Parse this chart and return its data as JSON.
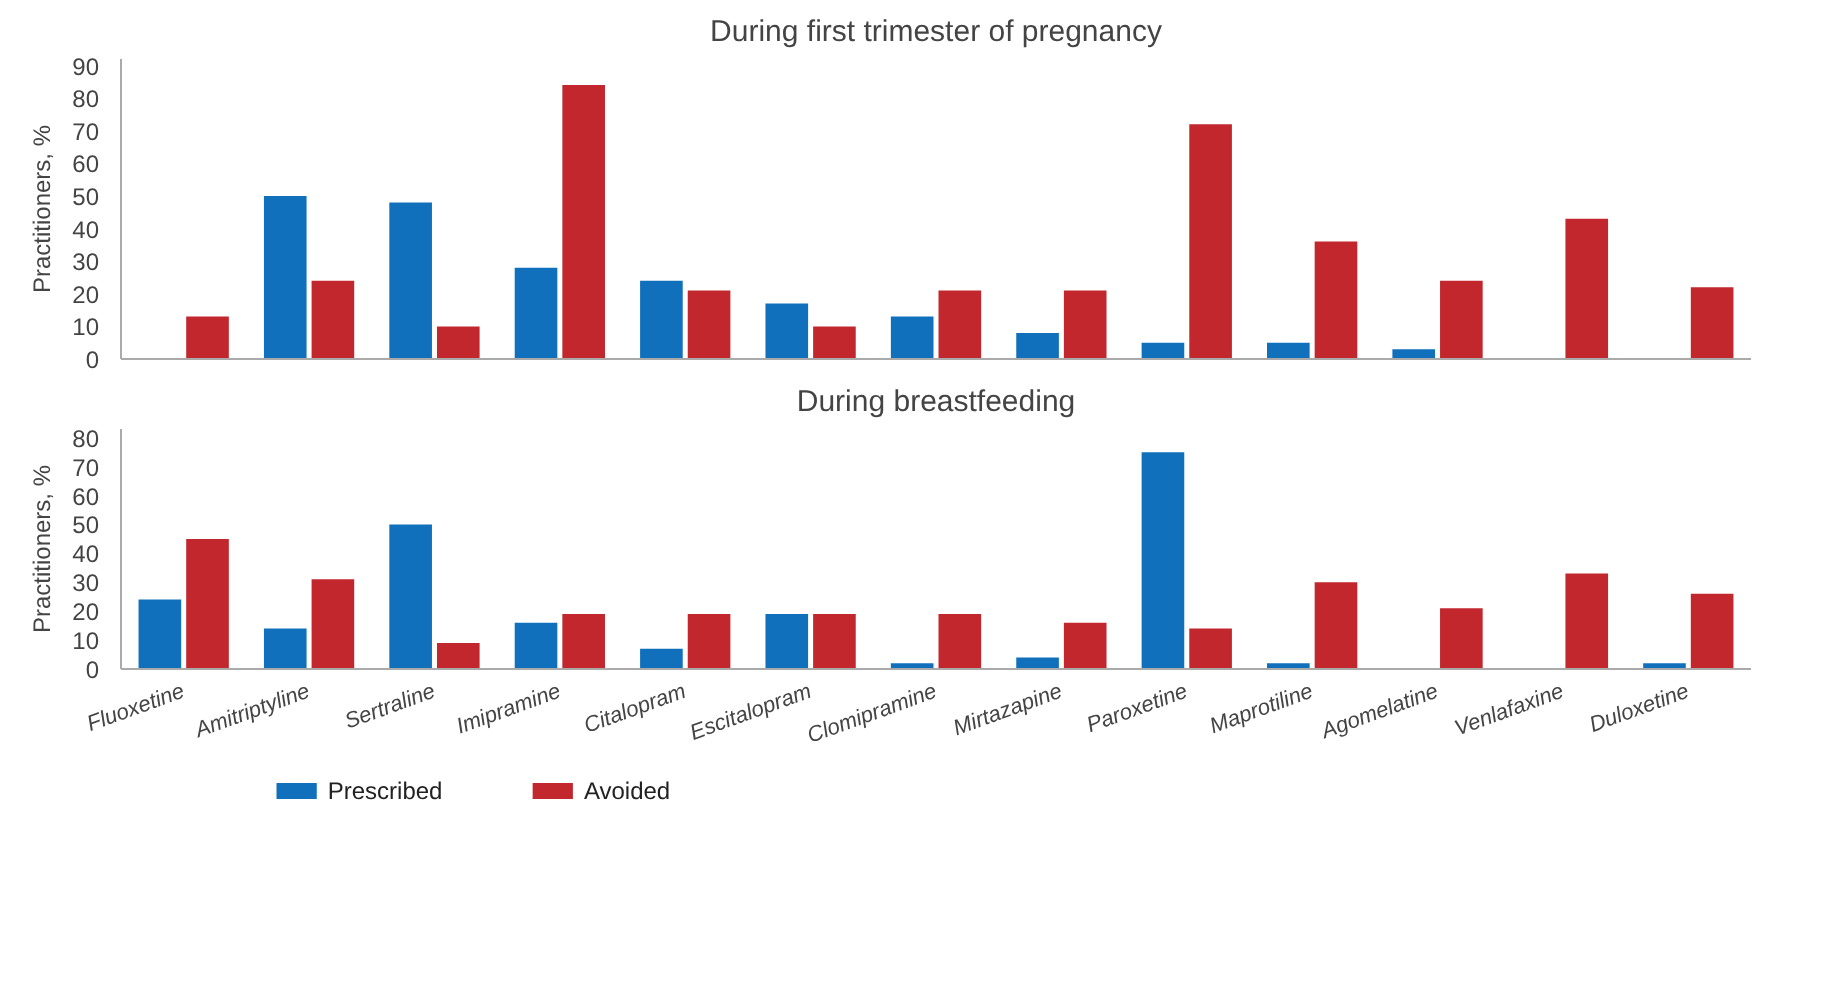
{
  "chart_data": [
    {
      "type": "bar",
      "title": "During first trimester of pregnancy",
      "ylabel": "Practitioners, %",
      "categories": [
        null,
        null,
        null,
        null,
        null,
        null,
        null,
        null,
        null,
        null,
        null,
        null,
        null
      ],
      "series": [
        {
          "color": "#1170bb",
          "values": [
            0,
            50,
            48,
            28,
            24,
            17,
            13,
            8,
            5,
            5,
            3,
            0,
            0
          ]
        },
        {
          "color": "#c1272d",
          "values": [
            13,
            24,
            10,
            84,
            21,
            10,
            21,
            21,
            72,
            36,
            24,
            43,
            22
          ]
        }
      ],
      "ylim": [
        0,
        92
      ],
      "yticks": [
        0,
        10,
        20,
        30,
        40,
        50,
        60,
        70,
        80,
        90
      ],
      "grid": false,
      "tick_labels": "y"
    },
    {
      "type": "bar",
      "title": "During breastfeeding",
      "ylabel": "Practitioners, %",
      "categories": [
        "Fluoxetine",
        "Amitriptyline",
        "Sertraline",
        "Imipramine",
        "Citalopram",
        "Escitalopram",
        "Clomipramine",
        "Mirtazapine",
        "Paroxetine",
        "Maprotiline",
        "Agomelatine",
        "Venlafaxine",
        "Duloxetine"
      ],
      "series": [
        {
          "name": "Prescribed",
          "color": "#1170bb",
          "values": [
            24,
            14,
            50,
            16,
            7,
            19,
            2,
            4,
            75,
            2,
            0,
            0,
            2
          ]
        },
        {
          "name": "Avoided",
          "color": "#c1272d",
          "values": [
            45,
            31,
            9,
            19,
            19,
            19,
            19,
            16,
            14,
            30,
            21,
            33,
            26
          ]
        }
      ],
      "ylim": [
        0,
        83
      ],
      "yticks": [
        0,
        10,
        20,
        30,
        40,
        50,
        60,
        70,
        80
      ],
      "grid": false,
      "legend": "bottom left"
    }
  ]
}
